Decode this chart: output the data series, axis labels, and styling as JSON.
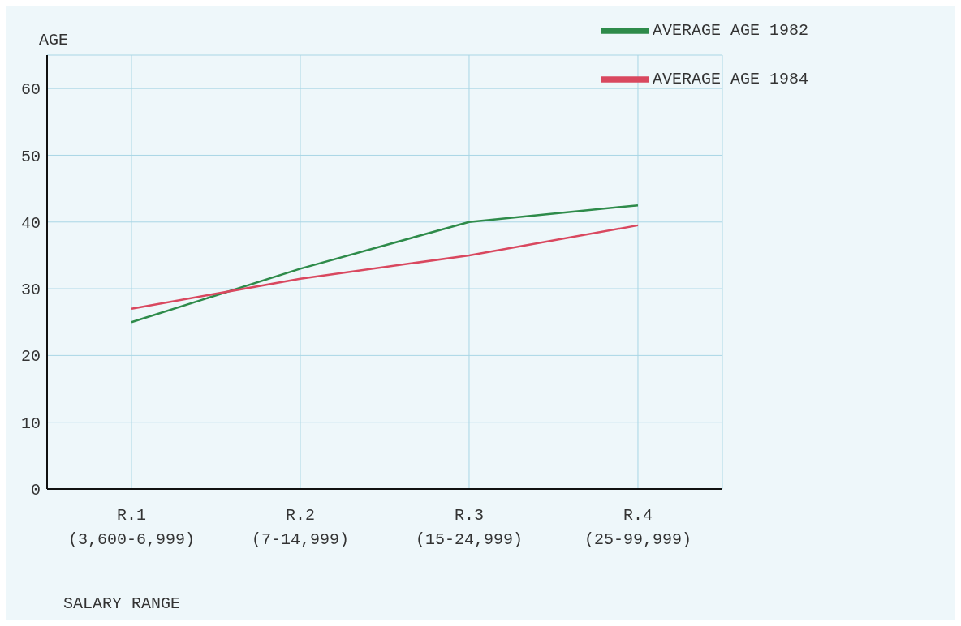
{
  "chart_data": {
    "type": "line",
    "ylabel": "AGE",
    "xlabel": "SALARY RANGE",
    "categories": [
      "R.1\n(3,600-6,999)",
      "R.2\n(7-14,999)",
      "R.3\n(15-24,999)",
      "R.4\n(25-99,999)"
    ],
    "series": [
      {
        "name": "AVERAGE AGE 1982",
        "color": "#2e8b4a",
        "values": [
          25,
          33,
          40,
          42.5
        ]
      },
      {
        "name": "AVERAGE AGE 1984",
        "color": "#d9485f",
        "values": [
          27,
          31.5,
          35,
          39.5
        ]
      }
    ],
    "ylim": [
      0,
      65
    ],
    "yticks": [
      0,
      10,
      20,
      30,
      40,
      50,
      60
    ],
    "grid": true,
    "legend": "top right",
    "marker": "none",
    "line_style": "solid"
  }
}
